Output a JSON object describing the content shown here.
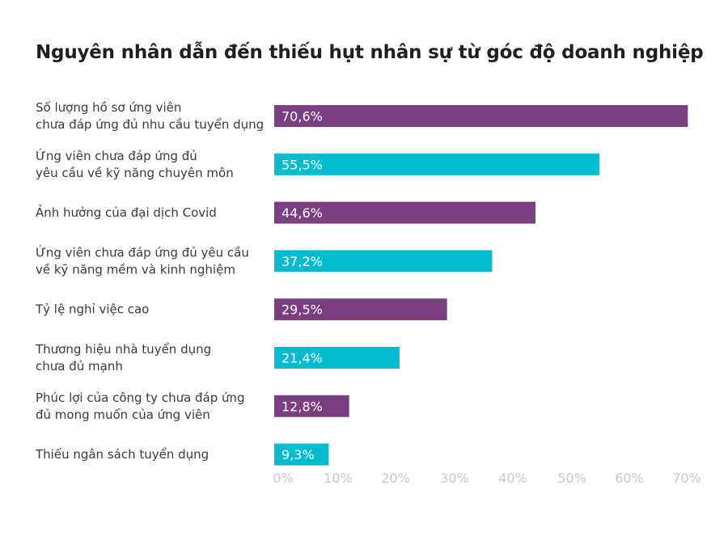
{
  "chart_data": {
    "type": "bar",
    "orientation": "horizontal",
    "title": "Nguyên nhân dẫn đến thiếu hụt nhân sự từ góc độ doanh nghiệp",
    "categories": [
      "Số lượng hồ sơ ứng viên\nchưa đáp ứng đủ nhu cầu tuyển dụng",
      "Ứng viên chưa đáp ứng đủ\nyêu cầu về kỹ năng chuyên môn",
      "Ảnh hưởng của đại dịch Covid",
      "Ứng viên chưa đáp ứng đủ yêu cầu\nvề kỹ năng mềm và kinh nghiệm",
      "Tỷ lệ nghỉ việc cao",
      "Thương hiệu nhà tuyển dụng\nchưa đủ mạnh",
      "Phúc lợi của công ty chưa đáp ứng\nđủ mong muốn của ứng viên",
      "Thiếu ngân sách tuyển dụng"
    ],
    "values": [
      70.6,
      55.5,
      44.6,
      37.2,
      29.5,
      21.4,
      12.8,
      9.3
    ],
    "value_labels": [
      "70,6%",
      "55,5%",
      "44,6%",
      "37,2%",
      "29,5%",
      "21,4%",
      "12,8%",
      "9,3%"
    ],
    "xticks": [
      "0%",
      "10%",
      "20%",
      "30%",
      "40%",
      "50%",
      "60%",
      "70%"
    ],
    "xlim": [
      0,
      70
    ],
    "grid": false,
    "colors": [
      "#7b3f81",
      "#00bcce"
    ]
  }
}
